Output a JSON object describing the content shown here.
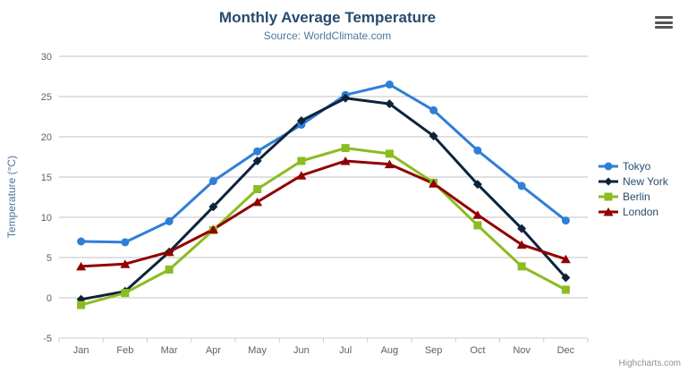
{
  "header": {
    "menu_icon": "hamburger-icon"
  },
  "credits": "Highcharts.com",
  "chart_data": {
    "type": "line",
    "title": "Monthly Average Temperature",
    "subtitle": "Source: WorldClimate.com",
    "xlabel": "",
    "ylabel": "Temperature (°C)",
    "ylim": [
      -5,
      30
    ],
    "ytick_interval": 5,
    "grid": true,
    "legend_position": "right",
    "categories": [
      "Jan",
      "Feb",
      "Mar",
      "Apr",
      "May",
      "Jun",
      "Jul",
      "Aug",
      "Sep",
      "Oct",
      "Nov",
      "Dec"
    ],
    "series": [
      {
        "name": "Tokyo",
        "color": "#2f7ed8",
        "marker": "circle",
        "values": [
          7.0,
          6.9,
          9.5,
          14.5,
          18.2,
          21.5,
          25.2,
          26.5,
          23.3,
          18.3,
          13.9,
          9.6
        ]
      },
      {
        "name": "New York",
        "color": "#0d233a",
        "marker": "diamond",
        "values": [
          -0.2,
          0.8,
          5.7,
          11.3,
          17.0,
          22.0,
          24.8,
          24.1,
          20.1,
          14.1,
          8.6,
          2.5
        ]
      },
      {
        "name": "Berlin",
        "color": "#8bbc21",
        "marker": "square",
        "values": [
          -0.9,
          0.6,
          3.5,
          8.4,
          13.5,
          17.0,
          18.6,
          17.9,
          14.3,
          9.0,
          3.9,
          1.0
        ]
      },
      {
        "name": "London",
        "color": "#910000",
        "marker": "triangle",
        "values": [
          3.9,
          4.2,
          5.7,
          8.5,
          11.9,
          15.2,
          17.0,
          16.6,
          14.2,
          10.3,
          6.6,
          4.8
        ]
      }
    ],
    "axis_colors": {
      "grid_line": "#c0c0c0",
      "axis_line": "#c0d0e0",
      "tick": "#c0d0e0",
      "label": "#606060"
    }
  }
}
